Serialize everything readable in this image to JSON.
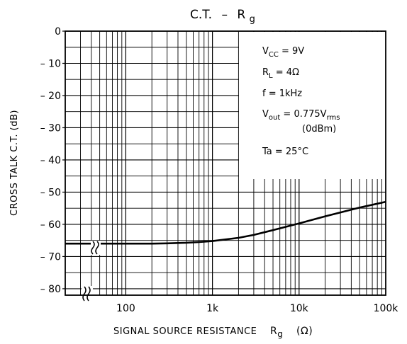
{
  "chart_data": {
    "type": "line",
    "title": {
      "main": "C.T.",
      "dash": "–",
      "var": "R",
      "sub": "g"
    },
    "xlabel": {
      "main": "SIGNAL SOURCE RESISTANCE",
      "var": "R",
      "sub": "g",
      "unit": "(Ω)"
    },
    "ylabel": "CROSS TALK  C.T.  (dB)",
    "x_scale": "log",
    "xlim": [
      20,
      100000
    ],
    "ylim": [
      -82,
      0
    ],
    "x_ticks": [
      {
        "value": 100,
        "label": "100"
      },
      {
        "value": 1000,
        "label": "1k"
      },
      {
        "value": 10000,
        "label": "10k"
      },
      {
        "value": 100000,
        "label": "100k"
      }
    ],
    "y_ticks": [
      {
        "value": 0,
        "label": "0"
      },
      {
        "value": -10,
        "label": "– 10"
      },
      {
        "value": -20,
        "label": "– 20"
      },
      {
        "value": -30,
        "label": "– 30"
      },
      {
        "value": -40,
        "label": "– 40"
      },
      {
        "value": -50,
        "label": "– 50"
      },
      {
        "value": -60,
        "label": "– 60"
      },
      {
        "value": -70,
        "label": "– 70"
      },
      {
        "value": -80,
        "label": "– 80"
      }
    ],
    "grid": true,
    "series": [
      {
        "x": [
          20,
          50,
          100,
          200,
          300,
          500,
          700,
          1000,
          2000,
          3000,
          5000,
          10000,
          20000,
          50000,
          100000
        ],
        "y": [
          -66,
          -66,
          -66,
          -66,
          -65.9,
          -65.7,
          -65.5,
          -65.2,
          -64.2,
          -63.3,
          -61.8,
          -59.7,
          -57.5,
          -54.8,
          -53
        ]
      }
    ],
    "conditions": [
      {
        "main": "V",
        "sub": "CC",
        "rest": " = 9V"
      },
      {
        "main": "R",
        "sub": "L",
        "rest": " = 4Ω"
      },
      {
        "main": "f = 1kHz",
        "sub": "",
        "rest": ""
      },
      {
        "main": "V",
        "sub": "out",
        "rest": " = 0.775V",
        "sub2": "rms"
      },
      {
        "main": "(0dBm)",
        "sub": "",
        "rest": ""
      },
      {
        "main": "Ta = 25°C",
        "sub": "",
        "rest": ""
      }
    ],
    "legend_placement": "top-right box",
    "line_color": "#000000",
    "background": "#ffffff"
  }
}
